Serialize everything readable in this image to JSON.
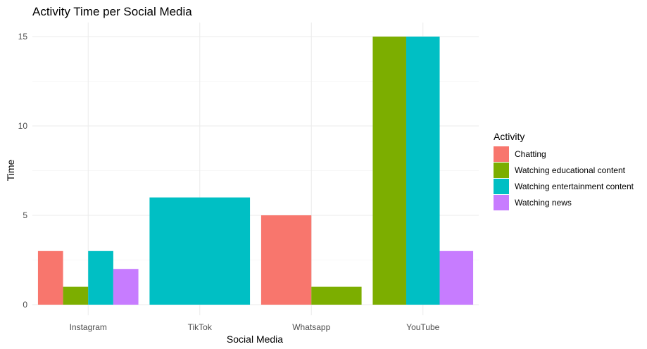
{
  "chart_data": {
    "type": "bar",
    "title": "Activity Time per Social Media",
    "xlabel": "Social Media",
    "ylabel": "Time",
    "categories": [
      "Instagram",
      "TikTok",
      "Whatsapp",
      "YouTube"
    ],
    "ylim": [
      0,
      15.6
    ],
    "yticks": [
      0,
      5,
      10,
      15
    ],
    "grid": true,
    "legend_title": "Activity",
    "legend_position": "right",
    "series": [
      {
        "name": "Chatting",
        "color": "#F8766D",
        "values": [
          3,
          null,
          5,
          null
        ]
      },
      {
        "name": "Watching educational content",
        "color": "#7CAE00",
        "values": [
          1,
          null,
          1,
          15
        ]
      },
      {
        "name": "Watching entertainment content",
        "color": "#00BFC4",
        "values": [
          3,
          6,
          null,
          15
        ]
      },
      {
        "name": "Watching news",
        "color": "#C77CFF",
        "values": [
          2,
          null,
          null,
          3
        ]
      }
    ]
  }
}
